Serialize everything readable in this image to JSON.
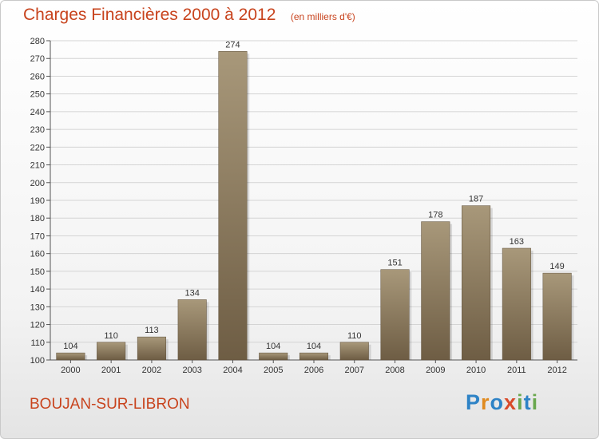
{
  "header": {
    "title": "Charges Financières 2000 à 2012",
    "subtitle": "(en milliers d'€)"
  },
  "footer": {
    "town": "BOUJAN-SUR-LIBRON",
    "logo_letters": [
      {
        "ch": "P",
        "color": "#2e83c6"
      },
      {
        "ch": "r",
        "color": "#e08a1e"
      },
      {
        "ch": "o",
        "color": "#2e83c6"
      },
      {
        "ch": "x",
        "color": "#d94a2a"
      },
      {
        "ch": "i",
        "color": "#6aa84f"
      },
      {
        "ch": "t",
        "color": "#2e83c6"
      },
      {
        "ch": "i",
        "color": "#6aa84f"
      }
    ]
  },
  "colors": {
    "title": "#c8431d",
    "bar_top": "#a8987a",
    "bar_bottom": "#6e5d44",
    "grid": "#d4d4d4"
  },
  "chart_data": {
    "type": "bar",
    "title": "Charges Financières 2000 à 2012",
    "subtitle": "(en milliers d'€)",
    "categories": [
      "2000",
      "2001",
      "2002",
      "2003",
      "2004",
      "2005",
      "2006",
      "2007",
      "2008",
      "2009",
      "2010",
      "2011",
      "2012"
    ],
    "values": [
      104,
      110,
      113,
      134,
      274,
      104,
      104,
      110,
      151,
      178,
      187,
      163,
      149
    ],
    "ylim": [
      100,
      280
    ],
    "ytick_step": 10,
    "grid": true,
    "legend": "none"
  }
}
